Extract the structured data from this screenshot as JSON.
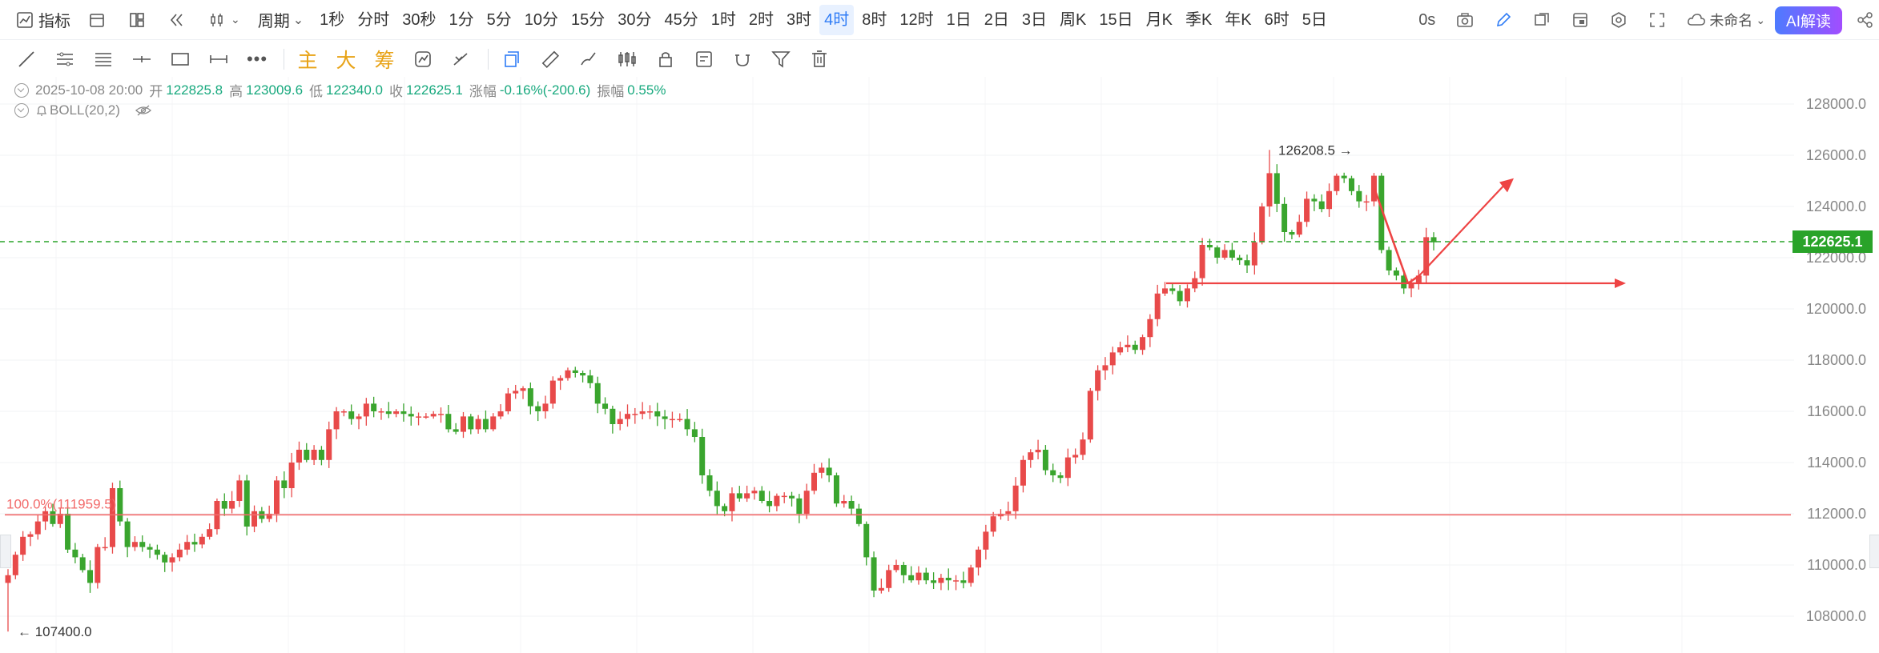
{
  "toolbar": {
    "indicator_label": "指标",
    "period_label": "周期",
    "periods": [
      "1秒",
      "分时",
      "30秒",
      "1分",
      "5分",
      "10分",
      "15分",
      "30分",
      "45分",
      "1时",
      "2时",
      "3时",
      "4时",
      "8时",
      "12时",
      "1日",
      "2日",
      "3日",
      "周K",
      "15日",
      "月K",
      "季K",
      "年K",
      "6时",
      "5日"
    ],
    "active_period": "4时",
    "countdown": "0s",
    "layout_name": "未命名",
    "ai_label": "AI解读"
  },
  "drawing_tools": {
    "main_label": "主",
    "big_label": "大",
    "chip_label": "筹"
  },
  "ohlc": {
    "datetime": "2025-10-08 20:00",
    "open_label": "开",
    "open": "122825.8",
    "high_label": "高",
    "high": "123009.6",
    "low_label": "低",
    "low": "122340.0",
    "close_label": "收",
    "close": "122625.1",
    "change_label": "涨幅",
    "change": "-0.16%(-200.6)",
    "amplitude_label": "振幅",
    "amplitude": "0.55%"
  },
  "indicator": {
    "name": "BOLL(20,2)"
  },
  "colors": {
    "up": "#e84a4a",
    "down": "#3aa52e",
    "accent": "#2f7cf6",
    "last_price": "#29a329",
    "annotation": "#ee4444"
  },
  "chart_data": {
    "type": "candlestick",
    "y_ticks": [
      "128000.0",
      "126000.0",
      "124000.0",
      "122000.0",
      "120000.0",
      "118000.0",
      "116000.0",
      "114000.0",
      "112000.0",
      "110000.0",
      "108000.0"
    ],
    "ylim": [
      107000,
      128500
    ],
    "last_price": 122625.1,
    "last_price_label": "122625.1",
    "max_marker": {
      "value": 126208.5,
      "label": "126208.5"
    },
    "min_marker": {
      "value": 107400.0,
      "label": "107400.0"
    },
    "fib_level": {
      "value": 111959.5,
      "label": "100.0%(111959.5)"
    },
    "support_line": {
      "value": 121000
    },
    "closes": [
      109600,
      110400,
      111100,
      111200,
      111700,
      112100,
      111600,
      112000,
      110600,
      110300,
      109800,
      109300,
      110700,
      110700,
      113000,
      111700,
      110700,
      110900,
      110700,
      110600,
      110400,
      110100,
      110300,
      110600,
      110900,
      110800,
      111100,
      111400,
      112500,
      112200,
      112500,
      113300,
      111500,
      112100,
      111800,
      112000,
      113300,
      113000,
      114000,
      114500,
      114100,
      114500,
      114100,
      115300,
      116000,
      116000,
      115700,
      115800,
      116300,
      116000,
      116000,
      115900,
      116000,
      115900,
      115800,
      115800,
      115800,
      115900,
      115900,
      115300,
      115200,
      115800,
      115300,
      115700,
      115300,
      115800,
      116000,
      116700,
      116800,
      116900,
      116200,
      116000,
      116300,
      117200,
      117300,
      117600,
      117500,
      117400,
      117100,
      116300,
      116100,
      115500,
      115700,
      115900,
      115900,
      116000,
      116000,
      115800,
      115700,
      115700,
      115700,
      115300,
      115000,
      113500,
      112900,
      112300,
      112100,
      112800,
      112600,
      112800,
      112900,
      112500,
      112300,
      112700,
      112700,
      112600,
      112000,
      112900,
      113600,
      113800,
      113500,
      112400,
      112500,
      112200,
      111600,
      110300,
      109000,
      109100,
      109800,
      110000,
      109600,
      109400,
      109700,
      109400,
      109300,
      109500,
      109400,
      109400,
      109300,
      109900,
      110600,
      111300,
      111900,
      112000,
      112100,
      113100,
      114100,
      114400,
      114500,
      113700,
      113500,
      113400,
      114200,
      114300,
      114900,
      116800,
      117600,
      117800,
      118300,
      118500,
      118600,
      118400,
      118900,
      119600,
      120600,
      120800,
      120700,
      120300,
      120800,
      121200,
      122500,
      122400,
      122000,
      122300,
      122000,
      121900,
      121700,
      122600,
      124000,
      125300,
      124100,
      123000,
      122900,
      123400,
      124300,
      124200,
      123900,
      124600,
      125200,
      125100,
      124600,
      124200,
      124200,
      125200,
      122300,
      121500,
      121300,
      120800,
      121000,
      121300,
      122800,
      122600
    ]
  }
}
